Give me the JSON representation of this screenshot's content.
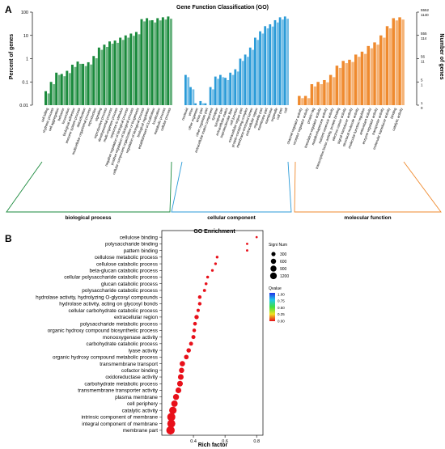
{
  "panels": {
    "a_label": "A",
    "b_label": "B"
  },
  "chart_data": [
    {
      "type": "bar",
      "title": "Gene Function Classification (GO)",
      "ylabel": "Percent of genes",
      "ylabel_right": "Number of genes",
      "yscale": "log",
      "ylim": [
        0.01,
        100
      ],
      "y_ticks": [
        "0.01",
        "0.1",
        "1",
        "10",
        "100"
      ],
      "right_ticks": [
        {
          "top": "5552",
          "bottom": "1140",
          "value": 100
        },
        {
          "top": "555",
          "bottom": "114",
          "value": 10
        },
        {
          "top": "56",
          "bottom": "11",
          "value": 1
        },
        {
          "top": "5",
          "bottom": "1",
          "value": 0.1
        },
        {
          "top": "1",
          "bottom": "0",
          "value": 0.01
        }
      ],
      "groups": [
        {
          "name": "biological process",
          "color": "#1a8a3c",
          "categories": [
            "cell killing",
            "rhythmic process",
            "cell aggregation",
            "behavior",
            "locomotion",
            "biological adhesion",
            "immune system process",
            "detoxification",
            "multicellular organismal process",
            "reproduction",
            "signaling",
            "reproductive process",
            "developmental process",
            "multi-organism process",
            "response to stimulus",
            "negative regulation of biological process",
            "positive regulation of biological process",
            "cellular component organization or biogenesis",
            "regulation of biological process",
            "biological regulation",
            "establishment of localization",
            "localization",
            "metabolic process",
            "cellular process"
          ],
          "values": [
            0.04,
            0.1,
            0.25,
            0.22,
            0.3,
            0.55,
            0.75,
            0.6,
            0.7,
            1.3,
            3,
            4,
            5.5,
            6,
            8,
            10,
            12,
            14,
            50,
            55,
            45,
            55,
            60,
            65
          ]
        },
        {
          "name": "cellular component",
          "color": "#2b9bd8",
          "categories": [
            "nucleoid",
            "virion",
            "other organism",
            "virion part",
            "other organism part",
            "extracellular matrix component",
            "synapse",
            "synapse part",
            "extracellular matrix",
            "supramolecular fiber",
            "cell junction",
            "extracellular region part",
            "protein-containing complex",
            "membrane-enclosed lumen",
            "extracellular region",
            "organelle part",
            "membrane part",
            "membrane",
            "organelle",
            "cell part",
            "cell"
          ],
          "values": [
            0.2,
            0.06,
            0.012,
            0.015,
            0.012,
            0.06,
            0.17,
            0.2,
            0.15,
            0.25,
            0.35,
            1,
            1.5,
            3,
            8,
            15,
            25,
            30,
            45,
            60,
            65
          ]
        },
        {
          "name": "molecular function",
          "color": "#ef8a2e",
          "categories": [
            "channel regulator activity",
            "receptor regulator activity",
            "protein tag",
            "translation regulator activity",
            "metallochaperone activity",
            "nutrient reservoir activity",
            "transcription factor activity, protein binding",
            "electron carrier activity",
            "signal transducer activity",
            "structural molecule activity",
            "molecular function regulator",
            "antioxidant activity",
            "enzyme regulator activity",
            "transporter activity",
            "molecular transducer activity",
            "binding",
            "catalytic activity"
          ],
          "values": [
            0.025,
            0.025,
            0.08,
            0.1,
            0.12,
            0.2,
            0.5,
            0.8,
            0.9,
            1.5,
            2,
            3.5,
            5,
            10,
            25,
            55,
            60
          ]
        }
      ]
    },
    {
      "type": "scatter",
      "title": "GO Enrichment",
      "xlabel": "Rich factor",
      "x_ticks": [
        "0.4",
        "0.6",
        "0.8"
      ],
      "xlim": [
        0.2,
        0.84
      ],
      "size_legend": {
        "title": "Signi Num",
        "labels": [
          "300",
          "600",
          "900",
          "1200"
        ]
      },
      "color_legend": {
        "title": "Qvalue",
        "labels": [
          "1.00",
          "0.75",
          "0.50",
          "0.25",
          "0.00"
        ]
      },
      "terms": [
        "cellulose binding",
        "polysaccharide binding",
        "pattern binding",
        "cellulose metabolic process",
        "cellulose catabolic process",
        "beta-glucan catabolic process",
        "cellular polysaccharide catabolic process",
        "glucan catabolic process",
        "polysaccharide catabolic process",
        "hydrolase activity, hydrolyzing O-glycosyl compounds",
        "hydrolase activity, acting on glycosyl bonds",
        "cellular carbohydrate catabolic process",
        "extracellular region",
        "polysaccharide metabolic process",
        "organic hydroxy compound biosynthetic process",
        "monooxygenase activity",
        "carbohydrate catabolic process",
        "lyase activity",
        "organic hydroxy compound metabolic process",
        "transmembrane transport",
        "cofactor binding",
        "oxidoreductase activity",
        "carbohydrate metabolic process",
        "transmembrane transporter activity",
        "plasma membrane",
        "cell periphery",
        "catalytic activity",
        "intrinsic component of membrane",
        "integral component of membrane",
        "membrane part"
      ],
      "rich_factor": [
        0.8,
        0.74,
        0.74,
        0.55,
        0.54,
        0.52,
        0.49,
        0.48,
        0.47,
        0.44,
        0.44,
        0.43,
        0.42,
        0.41,
        0.405,
        0.4,
        0.385,
        0.37,
        0.355,
        0.33,
        0.325,
        0.32,
        0.315,
        0.305,
        0.29,
        0.28,
        0.27,
        0.26,
        0.26,
        0.255
      ],
      "signi_num": [
        8,
        12,
        12,
        30,
        30,
        30,
        40,
        45,
        60,
        100,
        105,
        75,
        200,
        120,
        110,
        160,
        150,
        220,
        240,
        380,
        360,
        440,
        460,
        470,
        520,
        620,
        900,
        1150,
        1100,
        1250
      ],
      "qvalue": [
        0.01,
        0.01,
        0.01,
        0.01,
        0.01,
        0.01,
        0.01,
        0.01,
        0.01,
        0.01,
        0.01,
        0.01,
        0.01,
        0.01,
        0.01,
        0.01,
        0.01,
        0.01,
        0.01,
        0.01,
        0.01,
        0.01,
        0.01,
        0.01,
        0.01,
        0.01,
        0.01,
        0.01,
        0.01,
        0.01
      ],
      "point_color": "#e8101a"
    }
  ]
}
